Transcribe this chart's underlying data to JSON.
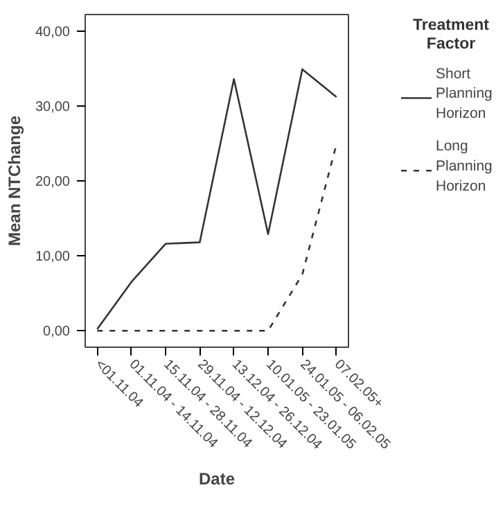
{
  "chart_data": {
    "type": "line",
    "xlabel": "Date",
    "ylabel": "Mean NTChange",
    "legend_title": "Treatment Factor",
    "categories": [
      "<01.11.04",
      "01.11.04 - 14.11.04",
      "15.11.04 - 28.11.04",
      "29.11.04 - 12.12.04",
      "13.12.04 - 26.12.04",
      "10.01.05 - 23.01.05",
      "24.01.05 - 06.02.05",
      "07.02.05+"
    ],
    "series": [
      {
        "name": "Short Planning Horizon",
        "color": "#333333",
        "line_style": "solid",
        "values": [
          0.2,
          6.5,
          11.6,
          11.8,
          33.6,
          12.9,
          34.9,
          31.2
        ]
      },
      {
        "name": "Long Planning Horizon",
        "color": "#333333",
        "line_style": "dashed",
        "values": [
          0,
          0,
          0,
          0,
          0,
          0,
          7.5,
          24.9
        ]
      }
    ],
    "ylim": [
      -2.2,
      42.2
    ],
    "yticks": [
      {
        "value": 0,
        "label": "0,00"
      },
      {
        "value": 10,
        "label": "10,00"
      },
      {
        "value": 20,
        "label": "20,00"
      },
      {
        "value": 30,
        "label": "30,00"
      },
      {
        "value": 40,
        "label": "40,00"
      }
    ],
    "grid": false,
    "legend": "right"
  }
}
